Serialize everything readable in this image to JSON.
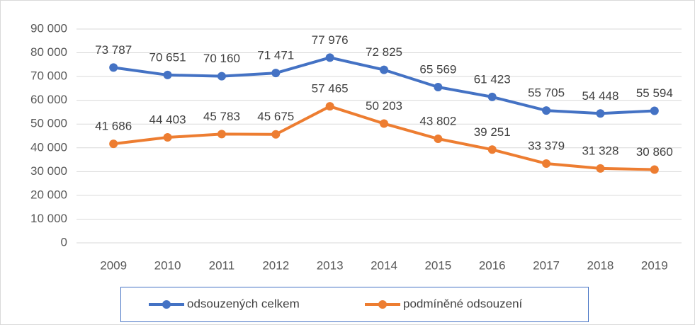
{
  "chart_data": {
    "type": "line",
    "categories": [
      "2009",
      "2010",
      "2011",
      "2012",
      "2013",
      "2014",
      "2015",
      "2016",
      "2017",
      "2018",
      "2019"
    ],
    "series": [
      {
        "name": "odsouzených celkem",
        "color": "#4472c4",
        "values": [
          73787,
          70651,
          70160,
          71471,
          77976,
          72825,
          65569,
          61423,
          55705,
          54448,
          55594
        ],
        "value_labels": [
          "73 787",
          "70 651",
          "70 160",
          "71 471",
          "77 976",
          "72 825",
          "65 569",
          "61 423",
          "55 705",
          "54 448",
          "55 594"
        ]
      },
      {
        "name": "podmíněné odsouzení",
        "color": "#ed7d31",
        "values": [
          41686,
          44403,
          45783,
          45675,
          57465,
          50203,
          43802,
          39251,
          33379,
          31328,
          30860
        ],
        "value_labels": [
          "41 686",
          "44 403",
          "45 783",
          "45 675",
          "57 465",
          "50 203",
          "43 802",
          "39 251",
          "33 379",
          "31 328",
          "30 860"
        ]
      }
    ],
    "ylim": [
      0,
      90000
    ],
    "yticks": [
      0,
      {
        "value": 10000,
        "label": "10 000"
      },
      {
        "value": 20000,
        "label": "20 000"
      },
      {
        "value": 30000,
        "label": "30 000"
      },
      {
        "value": 40000,
        "label": "40 000"
      },
      {
        "value": 50000,
        "label": "50 000"
      },
      {
        "value": 60000,
        "label": "60 000"
      },
      {
        "value": 70000,
        "label": "70 000"
      },
      {
        "value": 80000,
        "label": "80 000"
      },
      {
        "value": 90000,
        "label": "90 000"
      }
    ],
    "grid": true,
    "legend": "bottom"
  }
}
